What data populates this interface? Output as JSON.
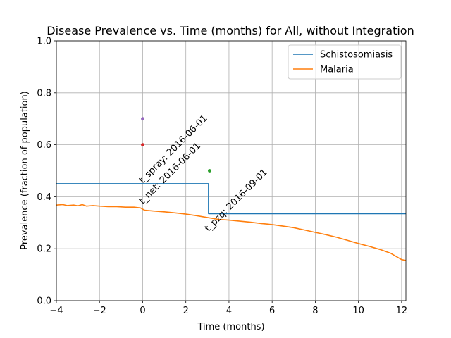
{
  "chart_data": {
    "type": "line",
    "title": "Disease Prevalence vs. Time (months) for All, without Integration",
    "xlabel": "Time (months)",
    "ylabel": "Prevalence (fraction of population)",
    "xlim": [
      -4,
      12.2
    ],
    "ylim": [
      0,
      1.0
    ],
    "grid": true,
    "legend_position": "top-right",
    "x_ticks": [
      -4,
      -2,
      0,
      2,
      4,
      6,
      8,
      10,
      12
    ],
    "x_tick_labels": [
      "−4",
      "−2",
      "0",
      "2",
      "4",
      "6",
      "8",
      "10",
      "12"
    ],
    "y_ticks": [
      0.0,
      0.2,
      0.4,
      0.6,
      0.8,
      1.0
    ],
    "y_tick_labels": [
      "0.0",
      "0.2",
      "0.4",
      "0.6",
      "0.8",
      "1.0"
    ],
    "series": [
      {
        "name": "Schistosomiasis",
        "color": "#1f77b4",
        "style": "step",
        "points": [
          [
            -4,
            0.45
          ],
          [
            3.05,
            0.45
          ],
          [
            3.05,
            0.335
          ],
          [
            12.2,
            0.335
          ]
        ]
      },
      {
        "name": "Malaria",
        "color": "#ff7f0e",
        "style": "line",
        "points": [
          [
            -4,
            0.368
          ],
          [
            -3.7,
            0.37
          ],
          [
            -3.5,
            0.366
          ],
          [
            -3.2,
            0.368
          ],
          [
            -3.0,
            0.365
          ],
          [
            -2.8,
            0.37
          ],
          [
            -2.6,
            0.364
          ],
          [
            -2.3,
            0.366
          ],
          [
            -2.0,
            0.364
          ],
          [
            -1.6,
            0.362
          ],
          [
            -1.2,
            0.362
          ],
          [
            -0.8,
            0.36
          ],
          [
            -0.4,
            0.36
          ],
          [
            -0.1,
            0.357
          ],
          [
            0.0,
            0.352
          ],
          [
            0.1,
            0.348
          ],
          [
            0.5,
            0.345
          ],
          [
            1.0,
            0.342
          ],
          [
            1.5,
            0.338
          ],
          [
            2.0,
            0.333
          ],
          [
            2.5,
            0.327
          ],
          [
            3.0,
            0.32
          ],
          [
            3.5,
            0.313
          ],
          [
            4.0,
            0.31
          ],
          [
            4.5,
            0.306
          ],
          [
            5.0,
            0.302
          ],
          [
            5.5,
            0.297
          ],
          [
            6.0,
            0.293
          ],
          [
            6.5,
            0.287
          ],
          [
            7.0,
            0.281
          ],
          [
            7.5,
            0.272
          ],
          [
            8.0,
            0.263
          ],
          [
            8.5,
            0.254
          ],
          [
            9.0,
            0.244
          ],
          [
            9.5,
            0.232
          ],
          [
            10.0,
            0.22
          ],
          [
            10.5,
            0.209
          ],
          [
            11.0,
            0.197
          ],
          [
            11.5,
            0.182
          ],
          [
            12.0,
            0.158
          ],
          [
            12.2,
            0.155
          ]
        ]
      }
    ],
    "markers": [
      {
        "x": 0,
        "y": 0.7,
        "color": "#9467bd"
      },
      {
        "x": 0,
        "y": 0.6,
        "color": "#d62728"
      },
      {
        "x": 3.1,
        "y": 0.5,
        "color": "#2ca02c"
      }
    ],
    "annotations": [
      {
        "text": "t_spray: 2016-06-01",
        "x": 0,
        "y": 0.45
      },
      {
        "text": "t_net: 2016-06-01",
        "x": 0,
        "y": 0.37
      },
      {
        "text": "t_pzq: 2016-09-01",
        "x": 3.05,
        "y": 0.265
      }
    ]
  }
}
